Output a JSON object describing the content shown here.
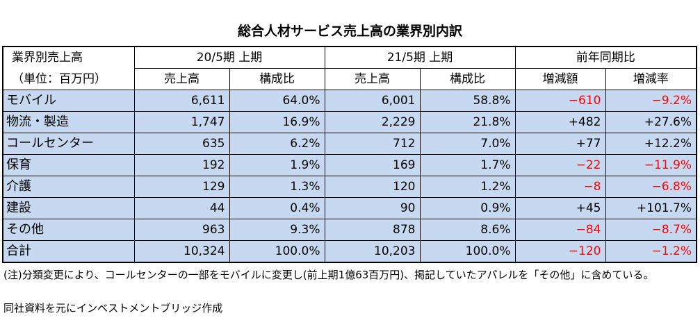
{
  "title": "総合人材サービス売上高の業界別内訳",
  "header": {
    "label_line1": "業界別売上高",
    "label_line2": "（単位：百万円）",
    "period1": "20/5期 上期",
    "period2": "21/5期 上期",
    "comparison": "前年同期比",
    "col_sales": "売上高",
    "col_ratio": "構成比",
    "col_diff": "増減額",
    "col_rate": "増減率"
  },
  "rows": [
    {
      "category": "モバイル",
      "sales1": "6,611",
      "ratio1": "64.0%",
      "sales2": "6,001",
      "ratio2": "58.8%",
      "diff": "−610",
      "rate": "−9.2%",
      "negative": true
    },
    {
      "category": "物流・製造",
      "sales1": "1,747",
      "ratio1": "16.9%",
      "sales2": "2,229",
      "ratio2": "21.8%",
      "diff": "+482",
      "rate": "+27.6%",
      "negative": false
    },
    {
      "category": "コールセンター",
      "sales1": "635",
      "ratio1": "6.2%",
      "sales2": "712",
      "ratio2": "7.0%",
      "diff": "+77",
      "rate": "+12.2%",
      "negative": false
    },
    {
      "category": "保育",
      "sales1": "192",
      "ratio1": "1.9%",
      "sales2": "169",
      "ratio2": "1.7%",
      "diff": "−22",
      "rate": "−11.9%",
      "negative": true
    },
    {
      "category": "介護",
      "sales1": "129",
      "ratio1": "1.3%",
      "sales2": "120",
      "ratio2": "1.2%",
      "diff": "−8",
      "rate": "−6.8%",
      "negative": true
    },
    {
      "category": "建設",
      "sales1": "44",
      "ratio1": "0.4%",
      "sales2": "90",
      "ratio2": "0.9%",
      "diff": "+45",
      "rate": "+101.7%",
      "negative": false
    },
    {
      "category": "その他",
      "sales1": "963",
      "ratio1": "9.3%",
      "sales2": "878",
      "ratio2": "8.6%",
      "diff": "−84",
      "rate": "−8.7%",
      "negative": true
    },
    {
      "category": "合計",
      "sales1": "10,324",
      "ratio1": "100.0%",
      "sales2": "10,203",
      "ratio2": "100.0%",
      "diff": "−120",
      "rate": "−1.2%",
      "negative": true
    }
  ],
  "notes": {
    "note1": "(注)分類変更により、コールセンターの一部をモバイルに変更し(前上期1億63百万円)、掲記していたアパレルを「その他」に含めている。",
    "note2": "同社資料を元にインベストメントブリッジ作成"
  },
  "colors": {
    "row_background": "#c6d9f0",
    "negative_text": "#ff0000"
  }
}
